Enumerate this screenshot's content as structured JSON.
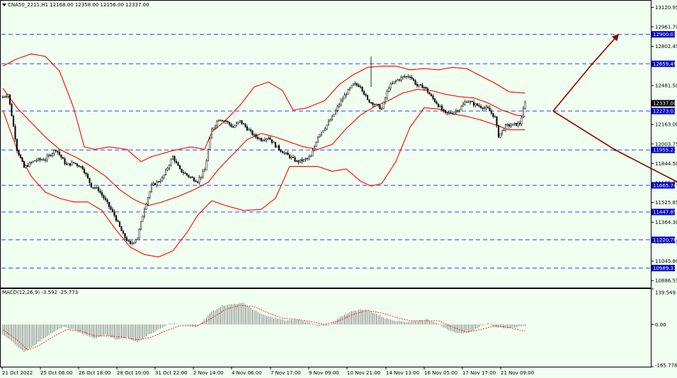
{
  "header": {
    "symbol_line": "CNA50_2211,H1  12168.00 12358.00 12156.00 12337.00",
    "macd_line": "MACD(12,26,9) -3.592 -25.773"
  },
  "colors": {
    "background": "#f0fff0",
    "candle": "#000000",
    "bollinger": "#ff0000",
    "level_line": "#3a3aff",
    "level_tag": "#0000c8",
    "current_tag": "#000000",
    "arrow": "#8b0000",
    "macd_hist": "#808080",
    "macd_signal": "#ff0000"
  },
  "chart_data": [
    {
      "type": "candlestick",
      "name": "CNA50_2211 H1",
      "ylim": [
        10830,
        13175
      ],
      "y_ticks": [
        "13120.95",
        "12961.70",
        "12802.45",
        "12481.50",
        "12163.00",
        "12003.75",
        "11844.50",
        "11685.25",
        "11525.85",
        "11364.30",
        "11205.05",
        "11045.80",
        "10886.55"
      ],
      "x_ticks": [
        "21 Oct 2022",
        "25 Oct 06:00",
        "26 Oct 18:00",
        "28 Oct 10:00",
        "31 Oct 22:00",
        "2 Nov 14:00",
        "4 Nov 06:00",
        "7 Nov 17:00",
        "9 Nov 09:00",
        "10 Nov 21:00",
        "14 Nov 13:00",
        "16 Nov 05:00",
        "17 Nov 17:00",
        "21 Nov 09:00"
      ],
      "levels": [
        "12900.03",
        "12659.49",
        "12273.03",
        "11955.21",
        "11665.74",
        "11447.85",
        "11220.78",
        "10989.37"
      ],
      "current_price": "12337.00",
      "price_anchors": [
        [
          0,
          12390
        ],
        [
          3,
          12410
        ],
        [
          5,
          12240
        ],
        [
          8,
          11960
        ],
        [
          12,
          11810
        ],
        [
          18,
          11870
        ],
        [
          24,
          11880
        ],
        [
          30,
          11960
        ],
        [
          36,
          11830
        ],
        [
          40,
          11850
        ],
        [
          45,
          11810
        ],
        [
          50,
          11660
        ],
        [
          54,
          11630
        ],
        [
          58,
          11540
        ],
        [
          63,
          11420
        ],
        [
          68,
          11260
        ],
        [
          72,
          11180
        ],
        [
          76,
          11240
        ],
        [
          80,
          11480
        ],
        [
          84,
          11660
        ],
        [
          90,
          11720
        ],
        [
          96,
          11900
        ],
        [
          100,
          11790
        ],
        [
          106,
          11730
        ],
        [
          110,
          11700
        ],
        [
          114,
          11790
        ],
        [
          118,
          12120
        ],
        [
          122,
          12210
        ],
        [
          126,
          12190
        ],
        [
          130,
          12140
        ],
        [
          134,
          12190
        ],
        [
          138,
          12130
        ],
        [
          142,
          12070
        ],
        [
          146,
          12040
        ],
        [
          150,
          12060
        ],
        [
          154,
          11990
        ],
        [
          158,
          11940
        ],
        [
          162,
          11900
        ],
        [
          166,
          11860
        ],
        [
          170,
          11870
        ],
        [
          174,
          11900
        ],
        [
          178,
          12070
        ],
        [
          182,
          12140
        ],
        [
          186,
          12220
        ],
        [
          190,
          12330
        ],
        [
          194,
          12420
        ],
        [
          198,
          12490
        ],
        [
          202,
          12480
        ],
        [
          206,
          12360
        ],
        [
          210,
          12330
        ],
        [
          214,
          12290
        ],
        [
          218,
          12470
        ],
        [
          222,
          12520
        ],
        [
          226,
          12550
        ],
        [
          230,
          12560
        ],
        [
          234,
          12480
        ],
        [
          238,
          12470
        ],
        [
          242,
          12390
        ],
        [
          246,
          12320
        ],
        [
          250,
          12250
        ],
        [
          254,
          12260
        ],
        [
          258,
          12290
        ],
        [
          262,
          12360
        ],
        [
          266,
          12330
        ],
        [
          270,
          12310
        ],
        [
          274,
          12290
        ],
        [
          278,
          12220
        ],
        [
          280,
          12070
        ],
        [
          284,
          12150
        ],
        [
          288,
          12160
        ],
        [
          292,
          12170
        ],
        [
          295,
          12337
        ]
      ],
      "upper_band_anchors": [
        [
          0,
          12640
        ],
        [
          8,
          12700
        ],
        [
          16,
          12740
        ],
        [
          24,
          12720
        ],
        [
          32,
          12600
        ],
        [
          40,
          12300
        ],
        [
          46,
          11980
        ],
        [
          52,
          11960
        ],
        [
          60,
          11980
        ],
        [
          70,
          11960
        ],
        [
          78,
          11860
        ],
        [
          84,
          11900
        ],
        [
          96,
          11950
        ],
        [
          106,
          11980
        ],
        [
          114,
          11960
        ],
        [
          118,
          12100
        ],
        [
          126,
          12200
        ],
        [
          134,
          12320
        ],
        [
          142,
          12470
        ],
        [
          150,
          12510
        ],
        [
          158,
          12440
        ],
        [
          164,
          12280
        ],
        [
          172,
          12300
        ],
        [
          182,
          12360
        ],
        [
          190,
          12490
        ],
        [
          198,
          12570
        ],
        [
          206,
          12630
        ],
        [
          214,
          12640
        ],
        [
          222,
          12640
        ],
        [
          230,
          12610
        ],
        [
          238,
          12620
        ],
        [
          246,
          12610
        ],
        [
          254,
          12630
        ],
        [
          262,
          12620
        ],
        [
          270,
          12560
        ],
        [
          278,
          12500
        ],
        [
          286,
          12430
        ],
        [
          295,
          12420
        ]
      ],
      "middle_band_anchors": [
        [
          0,
          12460
        ],
        [
          8,
          12300
        ],
        [
          16,
          12180
        ],
        [
          24,
          12060
        ],
        [
          32,
          11960
        ],
        [
          42,
          11890
        ],
        [
          50,
          11820
        ],
        [
          58,
          11740
        ],
        [
          66,
          11630
        ],
        [
          74,
          11550
        ],
        [
          82,
          11500
        ],
        [
          90,
          11530
        ],
        [
          100,
          11580
        ],
        [
          108,
          11630
        ],
        [
          116,
          11690
        ],
        [
          122,
          11800
        ],
        [
          130,
          11920
        ],
        [
          138,
          12040
        ],
        [
          146,
          12090
        ],
        [
          154,
          12060
        ],
        [
          162,
          12020
        ],
        [
          170,
          11980
        ],
        [
          178,
          11960
        ],
        [
          186,
          12000
        ],
        [
          194,
          12130
        ],
        [
          202,
          12240
        ],
        [
          210,
          12310
        ],
        [
          218,
          12360
        ],
        [
          226,
          12420
        ],
        [
          234,
          12450
        ],
        [
          242,
          12440
        ],
        [
          250,
          12410
        ],
        [
          258,
          12390
        ],
        [
          266,
          12380
        ],
        [
          274,
          12340
        ],
        [
          282,
          12280
        ],
        [
          290,
          12240
        ],
        [
          295,
          12230
        ]
      ],
      "lower_band_anchors": [
        [
          0,
          12280
        ],
        [
          8,
          11960
        ],
        [
          16,
          11740
        ],
        [
          24,
          11610
        ],
        [
          32,
          11560
        ],
        [
          40,
          11530
        ],
        [
          48,
          11530
        ],
        [
          56,
          11460
        ],
        [
          64,
          11300
        ],
        [
          72,
          11160
        ],
        [
          80,
          11100
        ],
        [
          88,
          11080
        ],
        [
          96,
          11130
        ],
        [
          104,
          11280
        ],
        [
          110,
          11420
        ],
        [
          118,
          11540
        ],
        [
          126,
          11500
        ],
        [
          136,
          11460
        ],
        [
          146,
          11470
        ],
        [
          154,
          11560
        ],
        [
          162,
          11820
        ],
        [
          170,
          11820
        ],
        [
          178,
          11820
        ],
        [
          186,
          11780
        ],
        [
          194,
          11800
        ],
        [
          202,
          11700
        ],
        [
          208,
          11660
        ],
        [
          214,
          11680
        ],
        [
          222,
          11860
        ],
        [
          230,
          12140
        ],
        [
          238,
          12300
        ],
        [
          246,
          12290
        ],
        [
          254,
          12250
        ],
        [
          262,
          12230
        ],
        [
          270,
          12200
        ],
        [
          278,
          12160
        ],
        [
          286,
          12120
        ],
        [
          295,
          12120
        ]
      ],
      "projection": {
        "up": [
          [
            12273,
            0
          ],
          [
            12659,
            24
          ],
          [
            12900,
            40
          ]
        ],
        "down": [
          [
            12273,
            0
          ],
          [
            11955,
            38
          ],
          [
            11665,
            80
          ]
        ]
      }
    },
    {
      "type": "bar",
      "name": "MACD(12,26,9)",
      "ylim": [
        -165.778,
        139.549
      ],
      "y_ticks": [
        "139.549",
        "0.00",
        "-165.778"
      ],
      "macd_anchors": [
        [
          0,
          -40
        ],
        [
          6,
          -70
        ],
        [
          12,
          -110
        ],
        [
          18,
          -80
        ],
        [
          26,
          -40
        ],
        [
          34,
          -10
        ],
        [
          40,
          -20
        ],
        [
          46,
          -40
        ],
        [
          52,
          -55
        ],
        [
          58,
          -40
        ],
        [
          64,
          -60
        ],
        [
          70,
          -50
        ],
        [
          76,
          -70
        ],
        [
          82,
          -40
        ],
        [
          88,
          -20
        ],
        [
          94,
          5
        ],
        [
          100,
          0
        ],
        [
          110,
          -10
        ],
        [
          118,
          50
        ],
        [
          124,
          75
        ],
        [
          130,
          80
        ],
        [
          136,
          85
        ],
        [
          142,
          55
        ],
        [
          148,
          35
        ],
        [
          154,
          25
        ],
        [
          160,
          15
        ],
        [
          166,
          20
        ],
        [
          172,
          10
        ],
        [
          178,
          -5
        ],
        [
          184,
          -5
        ],
        [
          192,
          35
        ],
        [
          198,
          55
        ],
        [
          204,
          60
        ],
        [
          210,
          45
        ],
        [
          216,
          25
        ],
        [
          222,
          15
        ],
        [
          228,
          10
        ],
        [
          234,
          15
        ],
        [
          240,
          20
        ],
        [
          246,
          5
        ],
        [
          252,
          -25
        ],
        [
          258,
          -35
        ],
        [
          264,
          -30
        ],
        [
          270,
          -5
        ],
        [
          274,
          5
        ],
        [
          278,
          -10
        ],
        [
          284,
          -15
        ],
        [
          290,
          -10
        ],
        [
          295,
          -4
        ]
      ],
      "signal_anchors": [
        [
          0,
          -20
        ],
        [
          8,
          -60
        ],
        [
          14,
          -100
        ],
        [
          20,
          -85
        ],
        [
          28,
          -50
        ],
        [
          36,
          -20
        ],
        [
          44,
          -25
        ],
        [
          52,
          -45
        ],
        [
          60,
          -45
        ],
        [
          68,
          -50
        ],
        [
          76,
          -60
        ],
        [
          84,
          -50
        ],
        [
          92,
          -25
        ],
        [
          100,
          -5
        ],
        [
          110,
          -5
        ],
        [
          118,
          25
        ],
        [
          126,
          60
        ],
        [
          134,
          75
        ],
        [
          142,
          70
        ],
        [
          150,
          45
        ],
        [
          158,
          25
        ],
        [
          166,
          20
        ],
        [
          174,
          12
        ],
        [
          182,
          0
        ],
        [
          190,
          15
        ],
        [
          198,
          40
        ],
        [
          206,
          55
        ],
        [
          214,
          45
        ],
        [
          222,
          28
        ],
        [
          230,
          15
        ],
        [
          238,
          15
        ],
        [
          246,
          15
        ],
        [
          254,
          -10
        ],
        [
          262,
          -30
        ],
        [
          270,
          -20
        ],
        [
          278,
          -5
        ],
        [
          286,
          -12
        ],
        [
          295,
          -26
        ]
      ]
    }
  ]
}
